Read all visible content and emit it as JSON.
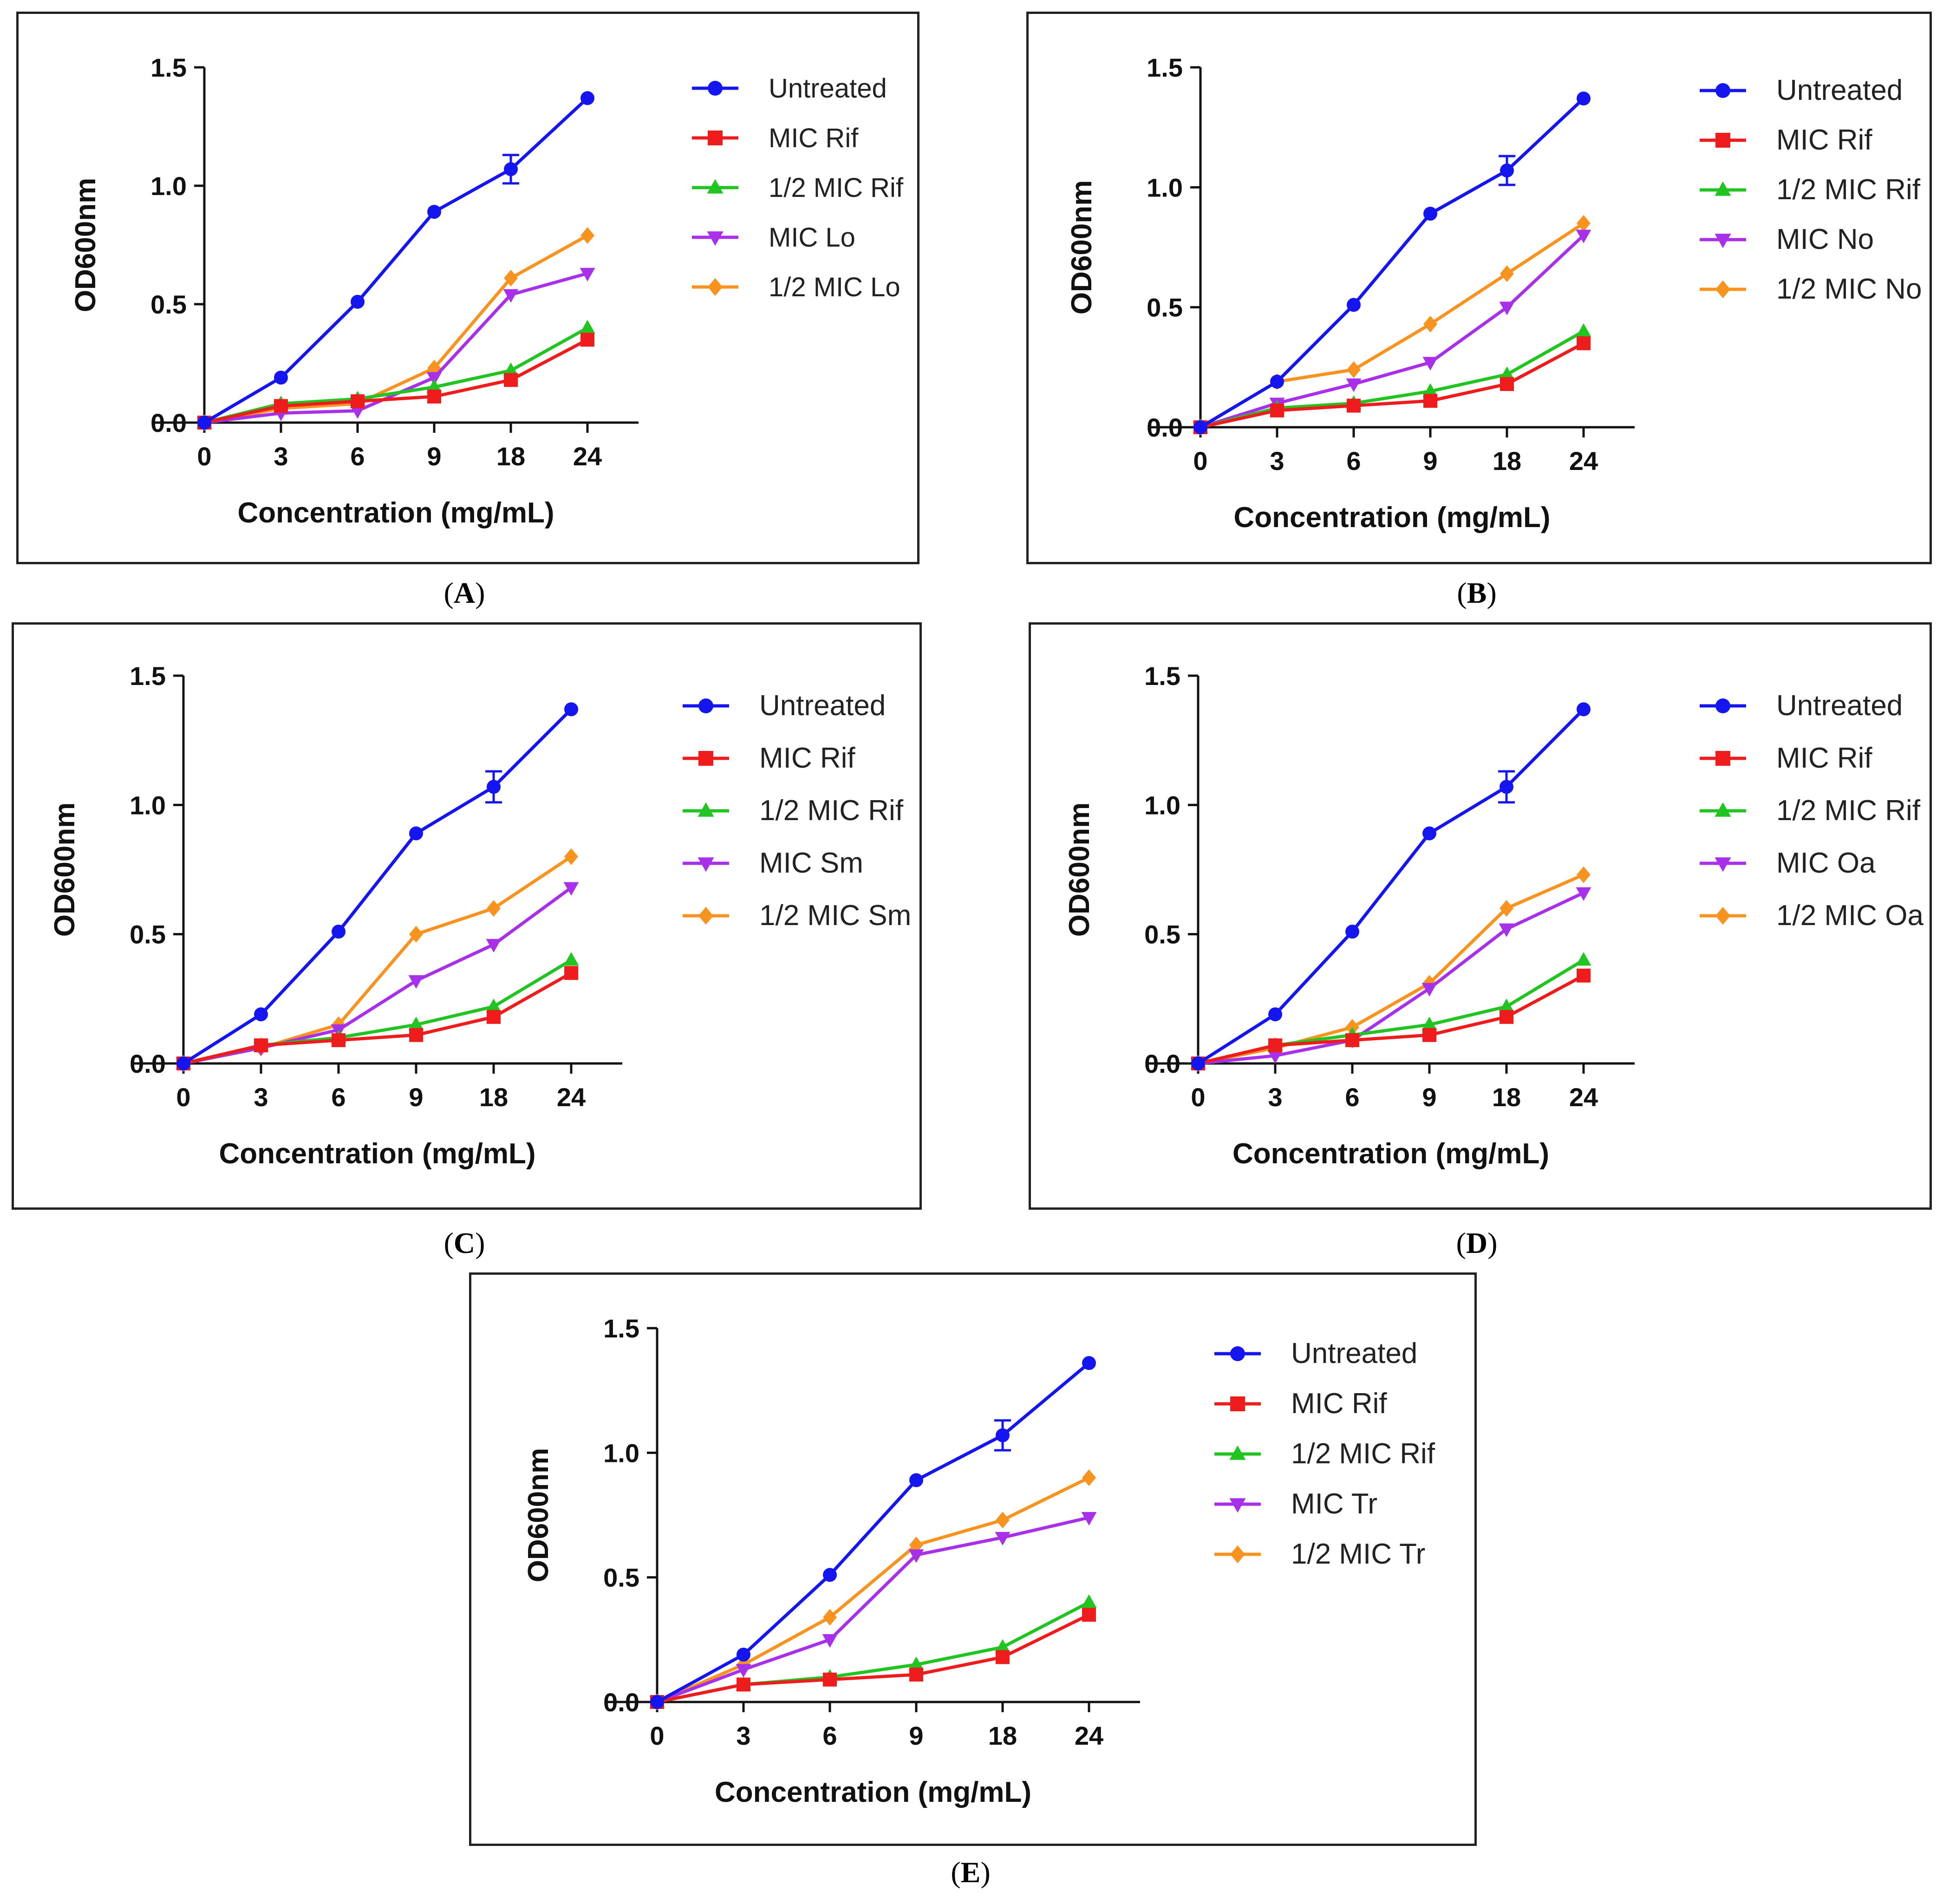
{
  "colors": {
    "Untreated": "#1515f0",
    "MIC Rif": "#ee1c1c",
    "half_rif": "#22c422",
    "mic_x": "#a730e8",
    "half_x": "#f7931e"
  },
  "chart_data": [
    {
      "id": "A",
      "type": "line",
      "caption_left": "(",
      "caption_letter": "A",
      "caption_right": ")",
      "xlabel": "Concentration (mg/mL)",
      "ylabel": "OD600nm",
      "categories": [
        "0",
        "3",
        "6",
        "9",
        "18",
        "24"
      ],
      "yticks": [
        "0.0",
        "0.5",
        "1.0",
        "1.5"
      ],
      "ylim": [
        0,
        1.5
      ],
      "legend_position": "right",
      "series": [
        {
          "name": "Untreated",
          "marker": "circle",
          "color": "#1515f0",
          "values": [
            0.0,
            0.19,
            0.51,
            0.89,
            1.07,
            1.37
          ],
          "error": [
            0,
            0,
            0,
            0,
            0.06,
            0
          ]
        },
        {
          "name": "MIC Rif",
          "marker": "square",
          "color": "#ee1c1c",
          "values": [
            0.0,
            0.07,
            0.09,
            0.11,
            0.18,
            0.35
          ]
        },
        {
          "name": "1/2 MIC Rif",
          "marker": "triangle-up",
          "color": "#22c422",
          "values": [
            0.0,
            0.08,
            0.1,
            0.15,
            0.22,
            0.4
          ]
        },
        {
          "name": "MIC Lo",
          "marker": "triangle-down",
          "color": "#a730e8",
          "values": [
            0.0,
            0.04,
            0.05,
            0.19,
            0.54,
            0.63
          ]
        },
        {
          "name": "1/2 MIC Lo",
          "marker": "diamond",
          "color": "#f7931e",
          "values": [
            0.0,
            0.06,
            0.08,
            0.23,
            0.61,
            0.79
          ]
        }
      ]
    },
    {
      "id": "B",
      "type": "line",
      "caption_left": "(",
      "caption_letter": "B",
      "caption_right": ")",
      "xlabel": "Concentration (mg/mL)",
      "ylabel": "OD600nm",
      "categories": [
        "0",
        "3",
        "6",
        "9",
        "18",
        "24"
      ],
      "yticks": [
        "0.0",
        "0.5",
        "1.0",
        "1.5"
      ],
      "ylim": [
        0,
        1.5
      ],
      "legend_position": "right",
      "series": [
        {
          "name": "Untreated",
          "marker": "circle",
          "color": "#1515f0",
          "values": [
            0.0,
            0.19,
            0.51,
            0.89,
            1.07,
            1.37
          ],
          "error": [
            0,
            0,
            0,
            0,
            0.06,
            0
          ]
        },
        {
          "name": "MIC Rif",
          "marker": "square",
          "color": "#ee1c1c",
          "values": [
            0.0,
            0.07,
            0.09,
            0.11,
            0.18,
            0.35
          ]
        },
        {
          "name": "1/2 MIC Rif",
          "marker": "triangle-up",
          "color": "#22c422",
          "values": [
            0.0,
            0.08,
            0.1,
            0.15,
            0.22,
            0.4
          ]
        },
        {
          "name": "MIC No",
          "marker": "triangle-down",
          "color": "#a730e8",
          "values": [
            0.0,
            0.1,
            0.18,
            0.27,
            0.5,
            0.8
          ]
        },
        {
          "name": "1/2 MIC No",
          "marker": "diamond",
          "color": "#f7931e",
          "values": [
            0.0,
            0.19,
            0.24,
            0.43,
            0.64,
            0.85
          ]
        }
      ]
    },
    {
      "id": "C",
      "type": "line",
      "caption_left": "(",
      "caption_letter": "C",
      "caption_right": ")",
      "xlabel": "Concentration (mg/mL)",
      "ylabel": "OD600nm",
      "categories": [
        "0",
        "3",
        "6",
        "9",
        "18",
        "24"
      ],
      "yticks": [
        "0.0",
        "0.5",
        "1.0",
        "1.5"
      ],
      "ylim": [
        0,
        1.5
      ],
      "legend_position": "right",
      "series": [
        {
          "name": "Untreated",
          "marker": "circle",
          "color": "#1515f0",
          "values": [
            0.0,
            0.19,
            0.51,
            0.89,
            1.07,
            1.37
          ],
          "error": [
            0,
            0,
            0,
            0,
            0.06,
            0
          ]
        },
        {
          "name": "MIC Rif",
          "marker": "square",
          "color": "#ee1c1c",
          "values": [
            0.0,
            0.07,
            0.09,
            0.11,
            0.18,
            0.35
          ]
        },
        {
          "name": "1/2 MIC Rif",
          "marker": "triangle-up",
          "color": "#22c422",
          "values": [
            0.0,
            0.07,
            0.1,
            0.15,
            0.22,
            0.4
          ]
        },
        {
          "name": "MIC Sm",
          "marker": "triangle-down",
          "color": "#a730e8",
          "values": [
            0.0,
            0.06,
            0.13,
            0.32,
            0.46,
            0.68
          ]
        },
        {
          "name": "1/2 MIC Sm",
          "marker": "diamond",
          "color": "#f7931e",
          "values": [
            0.0,
            0.06,
            0.15,
            0.5,
            0.6,
            0.8
          ]
        }
      ]
    },
    {
      "id": "D",
      "type": "line",
      "caption_left": "(",
      "caption_letter": "D",
      "caption_right": ")",
      "xlabel": "Concentration (mg/mL)",
      "ylabel": "OD600nm",
      "categories": [
        "0",
        "3",
        "6",
        "9",
        "18",
        "24"
      ],
      "yticks": [
        "0.0",
        "0.5",
        "1.0",
        "1.5"
      ],
      "ylim": [
        0,
        1.5
      ],
      "legend_position": "right",
      "series": [
        {
          "name": "Untreated",
          "marker": "circle",
          "color": "#1515f0",
          "values": [
            0.0,
            0.19,
            0.51,
            0.89,
            1.07,
            1.37
          ],
          "error": [
            0,
            0,
            0,
            0,
            0.06,
            0
          ]
        },
        {
          "name": "MIC Rif",
          "marker": "square",
          "color": "#ee1c1c",
          "values": [
            0.0,
            0.07,
            0.09,
            0.11,
            0.18,
            0.34
          ]
        },
        {
          "name": "1/2 MIC Rif",
          "marker": "triangle-up",
          "color": "#22c422",
          "values": [
            0.0,
            0.07,
            0.11,
            0.15,
            0.22,
            0.4
          ]
        },
        {
          "name": "MIC Oa",
          "marker": "triangle-down",
          "color": "#a730e8",
          "values": [
            0.0,
            0.03,
            0.09,
            0.29,
            0.52,
            0.66
          ]
        },
        {
          "name": "1/2 MIC Oa",
          "marker": "diamond",
          "color": "#f7931e",
          "values": [
            0.0,
            0.06,
            0.14,
            0.31,
            0.6,
            0.73
          ]
        }
      ]
    },
    {
      "id": "E",
      "type": "line",
      "caption_left": "(",
      "caption_letter": "E",
      "caption_right": ")",
      "xlabel": "Concentration (mg/mL)",
      "ylabel": "OD600nm",
      "categories": [
        "0",
        "3",
        "6",
        "9",
        "18",
        "24"
      ],
      "yticks": [
        "0.0",
        "0.5",
        "1.0",
        "1.5"
      ],
      "ylim": [
        0,
        1.5
      ],
      "legend_position": "right",
      "series": [
        {
          "name": "Untreated",
          "marker": "circle",
          "color": "#1515f0",
          "values": [
            0.0,
            0.19,
            0.51,
            0.89,
            1.07,
            1.36
          ],
          "error": [
            0,
            0,
            0,
            0,
            0.06,
            0
          ]
        },
        {
          "name": "MIC Rif",
          "marker": "square",
          "color": "#ee1c1c",
          "values": [
            0.0,
            0.07,
            0.09,
            0.11,
            0.18,
            0.35
          ]
        },
        {
          "name": "1/2 MIC Rif",
          "marker": "triangle-up",
          "color": "#22c422",
          "values": [
            0.0,
            0.07,
            0.1,
            0.15,
            0.22,
            0.4
          ]
        },
        {
          "name": "MIC Tr",
          "marker": "triangle-down",
          "color": "#a730e8",
          "values": [
            0.0,
            0.13,
            0.25,
            0.59,
            0.66,
            0.74
          ]
        },
        {
          "name": "1/2 MIC Tr",
          "marker": "diamond",
          "color": "#f7931e",
          "values": [
            0.0,
            0.15,
            0.34,
            0.63,
            0.73,
            0.9
          ]
        }
      ]
    }
  ]
}
